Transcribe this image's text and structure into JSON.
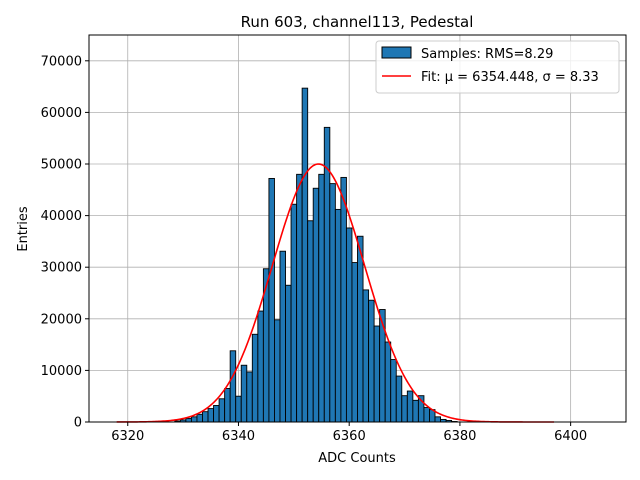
{
  "chart_data": {
    "type": "bar",
    "title": "Run 603, channel113, Pedestal",
    "xlabel": "ADC Counts",
    "ylabel": "Entries",
    "xlim": [
      6313,
      6410
    ],
    "ylim": [
      0,
      75000
    ],
    "xticks": [
      6320,
      6340,
      6360,
      6380,
      6400
    ],
    "yticks": [
      0,
      10000,
      20000,
      30000,
      40000,
      50000,
      60000,
      70000
    ],
    "grid": true,
    "legend_position": "top-right",
    "bar_color": "#1f77b4",
    "fit_color": "#ff0000",
    "bin_width": 1,
    "histogram": {
      "name": "Samples: RMS=8.29",
      "bins": [
        6329,
        6330,
        6331,
        6332,
        6333,
        6334,
        6335,
        6336,
        6337,
        6338,
        6339,
        6340,
        6341,
        6342,
        6343,
        6344,
        6345,
        6346,
        6347,
        6348,
        6349,
        6350,
        6351,
        6352,
        6353,
        6354,
        6355,
        6356,
        6357,
        6358,
        6359,
        6360,
        6361,
        6362,
        6363,
        6364,
        6365,
        6366,
        6367,
        6368,
        6369,
        6370,
        6371,
        6372,
        6373,
        6374,
        6375,
        6376,
        6377,
        6378,
        6379
      ],
      "values": [
        200,
        400,
        700,
        1000,
        1500,
        2000,
        2600,
        3200,
        4500,
        6500,
        13800,
        5000,
        11000,
        9700,
        17000,
        21500,
        29700,
        47200,
        19800,
        33100,
        26500,
        42200,
        48000,
        64700,
        39000,
        45300,
        48000,
        57100,
        46200,
        41200,
        47400,
        37600,
        30900,
        36000,
        25600,
        23600,
        18600,
        21800,
        15500,
        12100,
        8900,
        5100,
        6000,
        4200,
        5100,
        2800,
        2400,
        1000,
        500,
        300,
        100
      ]
    },
    "fit": {
      "name": "Fit: μ = 6354.448, σ = 8.33",
      "mu": 6354.448,
      "sigma": 8.33,
      "amplitude": 50000,
      "x_range": [
        6318,
        6397
      ]
    }
  }
}
